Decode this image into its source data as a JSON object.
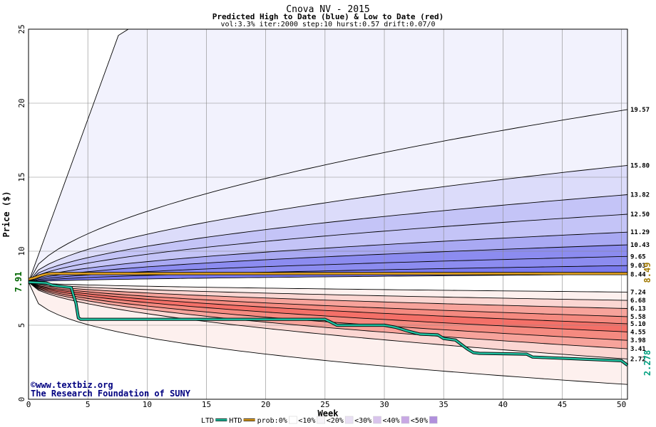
{
  "chart_data": {
    "type": "area",
    "title": "Cnova NV - 2015",
    "subtitle": "Predicted High to Date (blue) &  Low to Date (red)",
    "params": "vol:3.3% iter:2000 step:10 hurst:0.57 drift:0.07/0",
    "xlabel": "Week",
    "ylabel": "Price ($)",
    "xlim": [
      0,
      50.5
    ],
    "ylim": [
      0,
      25
    ],
    "x_ticks": [
      0,
      5,
      10,
      15,
      20,
      25,
      30,
      35,
      40,
      45,
      50
    ],
    "y_ticks": [
      0,
      5,
      10,
      15,
      20,
      25
    ],
    "grid": true,
    "start_price_label": "7.91",
    "start_price": 7.91,
    "current_high_label": "8.49",
    "current_high": 8.49,
    "current_low_label": "2.278",
    "current_low": 2.278,
    "high_percentiles": [
      {
        "label": "19.57",
        "value": 19.57
      },
      {
        "label": "15.80",
        "value": 15.8
      },
      {
        "label": "13.82",
        "value": 13.82
      },
      {
        "label": "12.50",
        "value": 12.5
      },
      {
        "label": "11.29",
        "value": 11.29
      },
      {
        "label": "10.43",
        "value": 10.43
      },
      {
        "label": "9.65",
        "value": 9.65
      },
      {
        "label": "9.03",
        "value": 9.03
      },
      {
        "label": "8.44",
        "value": 8.44
      }
    ],
    "low_percentiles": [
      {
        "label": "7.24",
        "value": 7.24
      },
      {
        "label": "6.68",
        "value": 6.68
      },
      {
        "label": "6.13",
        "value": 6.13
      },
      {
        "label": "5.58",
        "value": 5.58
      },
      {
        "label": "5.10",
        "value": 5.1
      },
      {
        "label": "4.55",
        "value": 4.55
      },
      {
        "label": "3.98",
        "value": 3.98
      },
      {
        "label": "3.41",
        "value": 3.41
      },
      {
        "label": "2.72",
        "value": 2.72
      }
    ],
    "series": [
      {
        "name": "LTD",
        "color": "#20c0a0",
        "points": [
          [
            0,
            7.91
          ],
          [
            1.5,
            7.85
          ],
          [
            2,
            7.7
          ],
          [
            3,
            7.6
          ],
          [
            3.6,
            7.55
          ],
          [
            3.8,
            7.0
          ],
          [
            4,
            6.5
          ],
          [
            4.2,
            5.5
          ],
          [
            4.4,
            5.4
          ],
          [
            25,
            5.4
          ],
          [
            25.5,
            5.2
          ],
          [
            26,
            5.0
          ],
          [
            30,
            5.0
          ],
          [
            31,
            4.85
          ],
          [
            32,
            4.6
          ],
          [
            33,
            4.4
          ],
          [
            34.5,
            4.35
          ],
          [
            35,
            4.1
          ],
          [
            36,
            4.0
          ],
          [
            37,
            3.4
          ],
          [
            37.5,
            3.15
          ],
          [
            38,
            3.1
          ],
          [
            42,
            3.05
          ],
          [
            42.5,
            2.85
          ],
          [
            50,
            2.6
          ],
          [
            50.5,
            2.3
          ]
        ]
      },
      {
        "name": "HTD",
        "color": "#e0a020",
        "points": [
          [
            0,
            8.1
          ],
          [
            0.5,
            8.2
          ],
          [
            1,
            8.35
          ],
          [
            1.5,
            8.45
          ],
          [
            2,
            8.49
          ],
          [
            50.5,
            8.49
          ]
        ]
      }
    ],
    "legend": {
      "position": "bottom",
      "items": [
        {
          "label": "LTD",
          "color": "#20c0a0",
          "kind": "line"
        },
        {
          "label": "HTD",
          "color": "#e0a020",
          "kind": "line"
        },
        {
          "label": "prob:0%",
          "color": "#ffffff",
          "kind": "swatch"
        },
        {
          "label": "<10%",
          "color": "#f6f4f8",
          "kind": "swatch"
        },
        {
          "label": "<20%",
          "color": "#e9e0f4",
          "kind": "swatch"
        },
        {
          "label": "<30%",
          "color": "#d8c4ec",
          "kind": "swatch"
        },
        {
          "label": "<40%",
          "color": "#c8a8e4",
          "kind": "swatch"
        },
        {
          "label": "<50%",
          "color": "#b090dc",
          "kind": "swatch"
        }
      ]
    }
  },
  "watermark": {
    "line1": "©www.textbiz.org",
    "line2": "The Research Foundation of SUNY"
  },
  "colors": {
    "title": "#000000",
    "axis_text": "#000000",
    "start_label": "#006600",
    "high_label": "#a07800",
    "low_label": "#00a080",
    "watermark": "#000080",
    "blue_bands": [
      "#f2f2fd",
      "#dcdcfa",
      "#c4c4f7",
      "#a9a9f3",
      "#8c8cf0",
      "#7b7bee"
    ],
    "red_bands": [
      "#fdf0ee",
      "#fbd6d2",
      "#f9bcb6",
      "#f7a39b",
      "#f58a80",
      "#f47068"
    ]
  }
}
